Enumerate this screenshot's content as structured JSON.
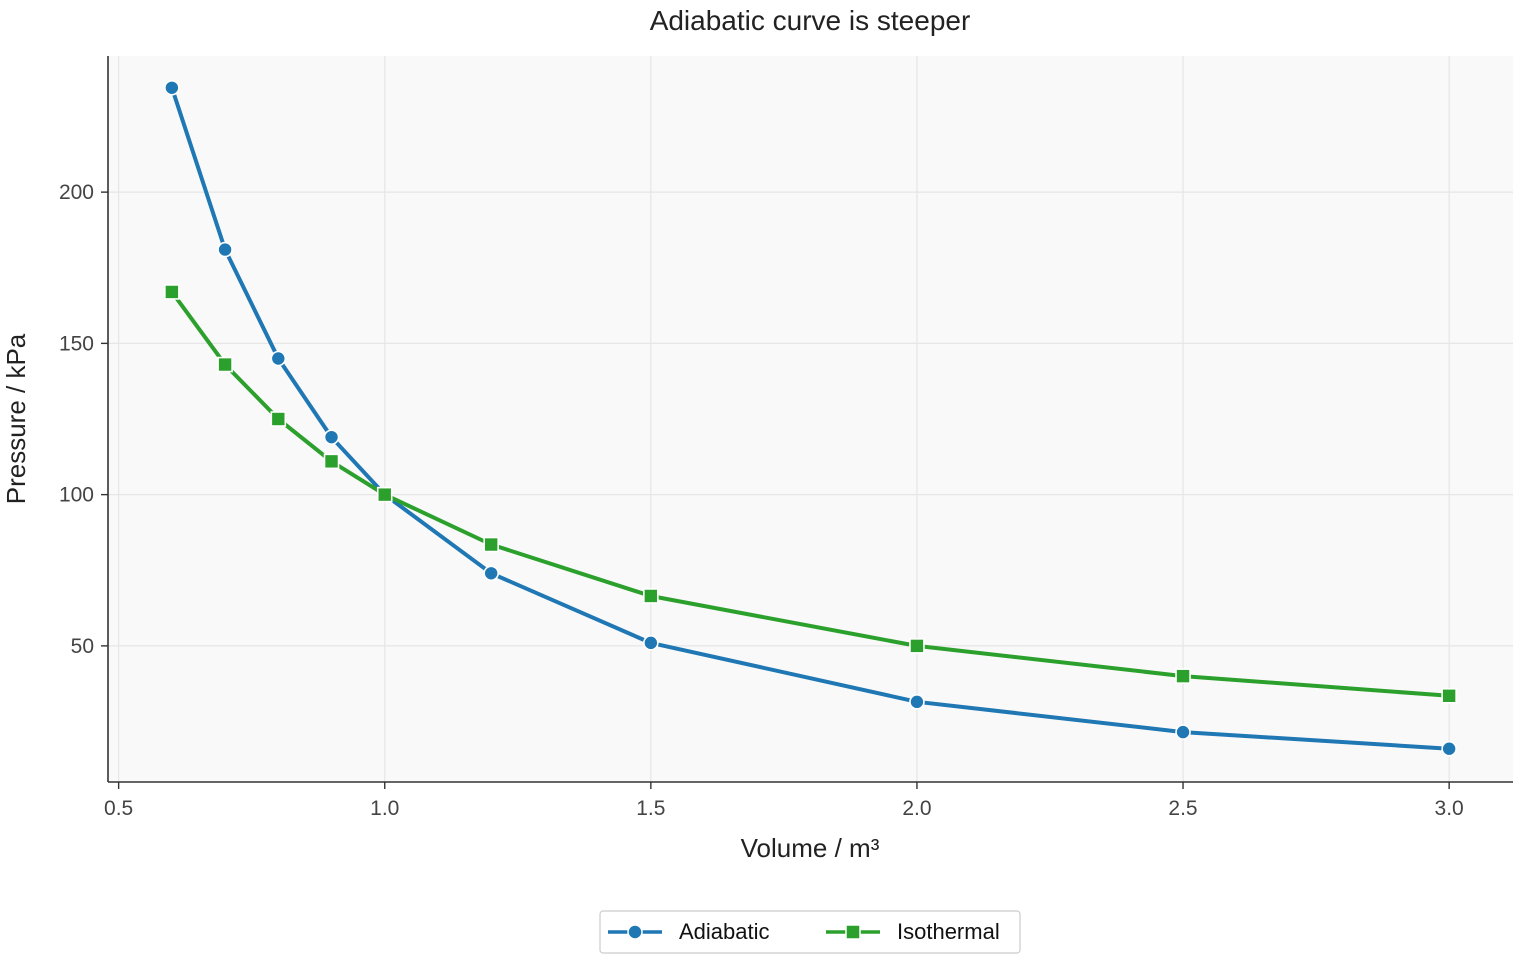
{
  "chart_data": {
    "type": "line",
    "title": "Adiabatic curve is steeper",
    "xlabel": "Volume / m³",
    "ylabel": "Pressure / kPa",
    "xlim": [
      0.48,
      3.12
    ],
    "ylim": [
      5,
      245
    ],
    "xticks": [
      0.5,
      1.0,
      1.5,
      2.0,
      2.5,
      3.0
    ],
    "xtick_labels": [
      "0.5",
      "1.0",
      "1.5",
      "2.0",
      "2.5",
      "3.0"
    ],
    "yticks": [
      50,
      100,
      150,
      200
    ],
    "ytick_labels": [
      "50",
      "100",
      "150",
      "200"
    ],
    "grid": true,
    "legend_position": "bottom-center",
    "x": [
      0.6,
      0.7,
      0.8,
      0.9,
      1.0,
      1.2,
      1.5,
      2.0,
      2.5,
      3.0
    ],
    "series": [
      {
        "name": "Adiabatic",
        "color": "#1f77b4",
        "marker": "circle",
        "values": [
          234.5,
          181,
          145,
          119,
          100,
          74,
          51,
          31.5,
          21.5,
          16
        ]
      },
      {
        "name": "Isothermal",
        "color": "#2ca02c",
        "marker": "square",
        "values": [
          167,
          143,
          125,
          111,
          100,
          83.5,
          66.5,
          50,
          40,
          33.5
        ]
      }
    ]
  }
}
